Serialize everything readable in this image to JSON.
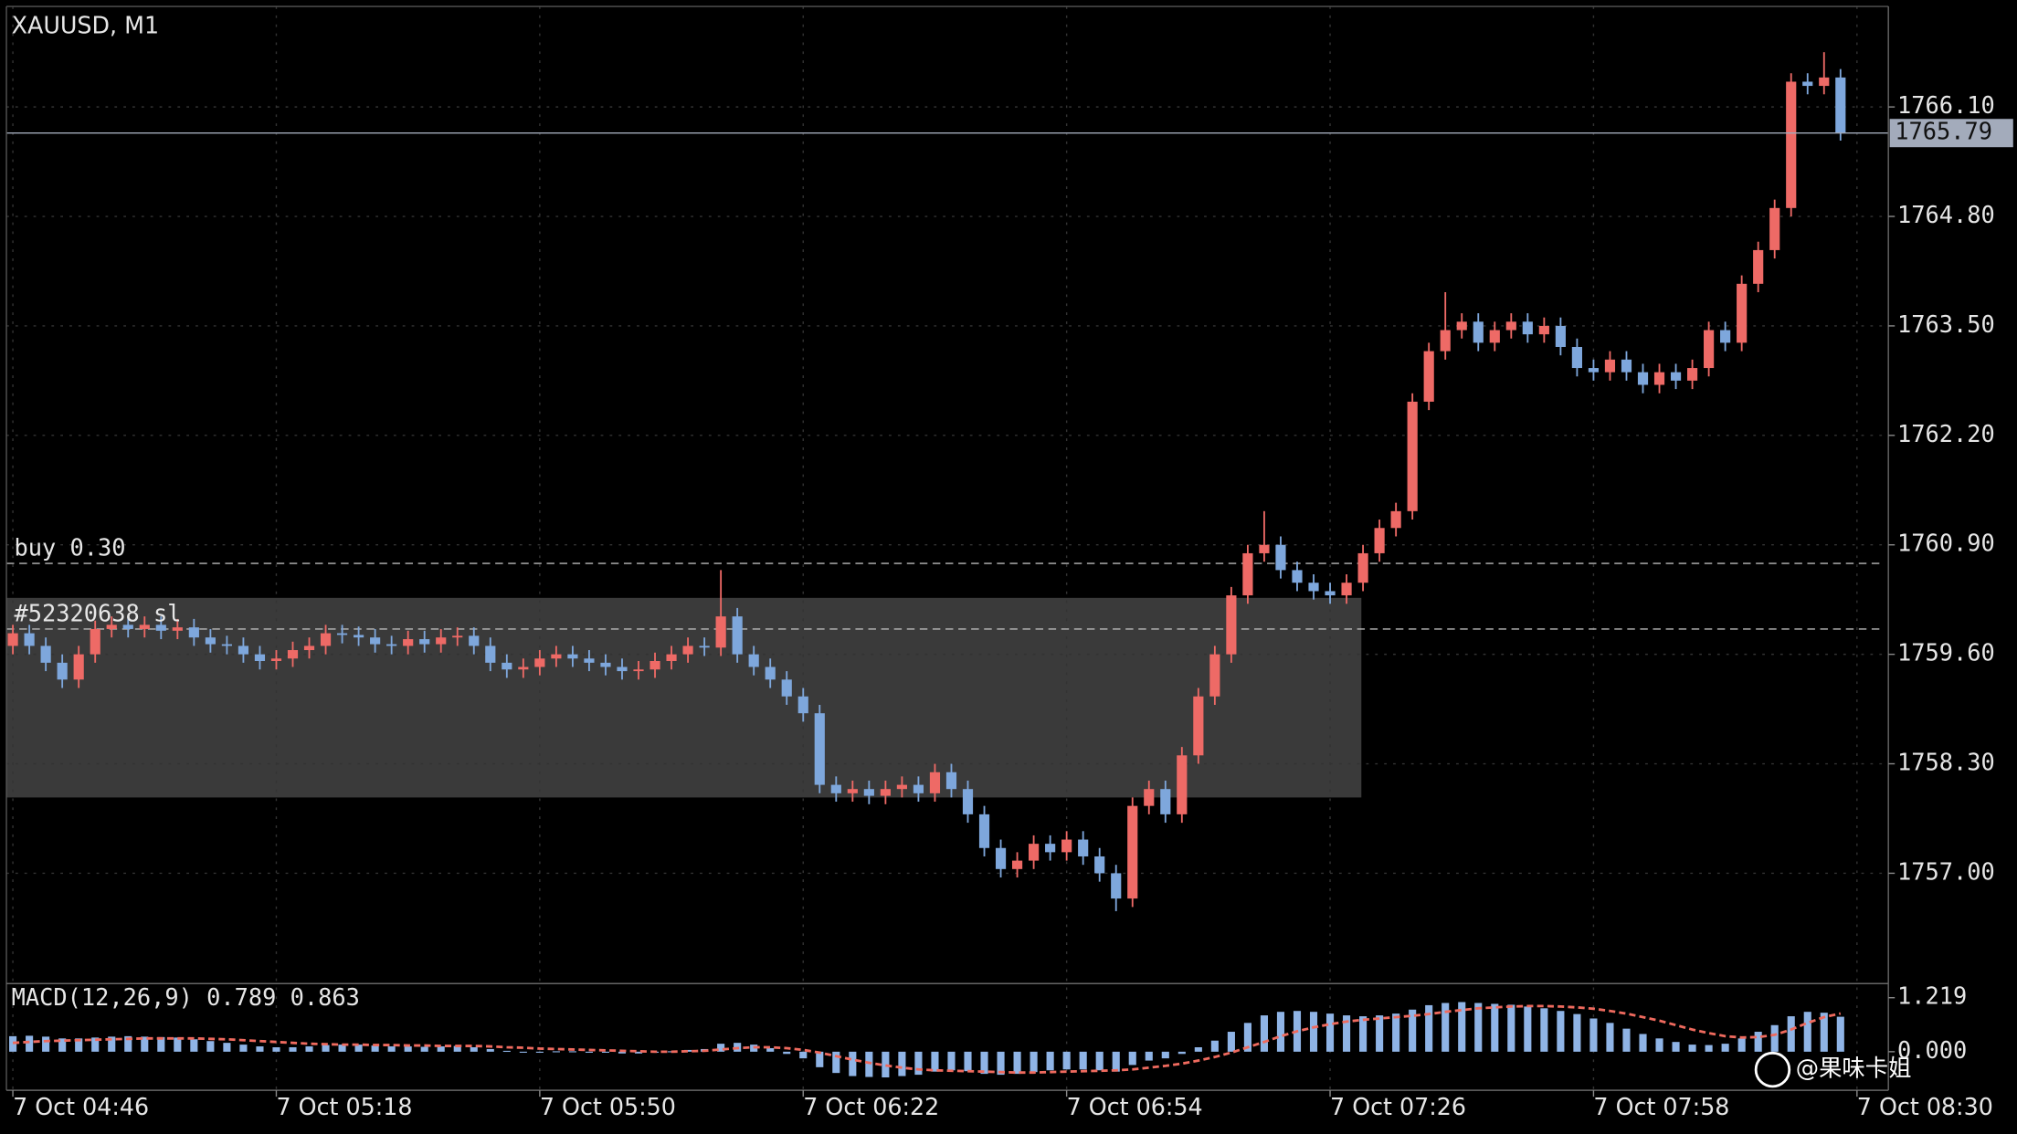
{
  "chart_data": {
    "type": "candlestick",
    "title": "XAUUSD, M1",
    "xlim": [
      0,
      112
    ],
    "xticks": [
      {
        "value": 0,
        "label": "7 Oct 04:46"
      },
      {
        "value": 16,
        "label": "7 Oct 05:18"
      },
      {
        "value": 32,
        "label": "7 Oct 05:50"
      },
      {
        "value": 48,
        "label": "7 Oct 06:22"
      },
      {
        "value": 64,
        "label": "7 Oct 06:54"
      },
      {
        "value": 80,
        "label": "7 Oct 07:26"
      },
      {
        "value": 96,
        "label": "7 Oct 07:58"
      },
      {
        "value": 112,
        "label": "7 Oct 08:30"
      }
    ],
    "ylim": [
      1755.69,
      1767.37
    ],
    "yticks": [
      {
        "value": 1757.0,
        "label": "1757.00"
      },
      {
        "value": 1758.3,
        "label": "1758.30"
      },
      {
        "value": 1759.6,
        "label": "1759.60"
      },
      {
        "value": 1760.9,
        "label": "1760.90"
      },
      {
        "value": 1762.2,
        "label": "1762.20"
      },
      {
        "value": 1763.5,
        "label": "1763.50"
      },
      {
        "value": 1764.8,
        "label": "1764.80"
      },
      {
        "value": 1766.1,
        "label": "1766.10"
      }
    ],
    "grid": true,
    "up_color": "#ee6a66",
    "down_color": "#7ea7dc",
    "open": [
      1759.7,
      1759.85,
      1759.7,
      1759.5,
      1759.3,
      1759.6,
      1759.9,
      1759.95,
      1759.9,
      1759.95,
      1759.88,
      1759.92,
      1759.8,
      1759.72,
      1759.7,
      1759.6,
      1759.52,
      1759.55,
      1759.65,
      1759.7,
      1759.85,
      1759.83,
      1759.8,
      1759.72,
      1759.7,
      1759.78,
      1759.72,
      1759.8,
      1759.82,
      1759.7,
      1759.5,
      1759.42,
      1759.45,
      1759.55,
      1759.6,
      1759.55,
      1759.5,
      1759.45,
      1759.4,
      1759.42,
      1759.52,
      1759.6,
      1759.7,
      1759.68,
      1760.05,
      1759.6,
      1759.45,
      1759.3,
      1759.1,
      1758.9,
      1758.05,
      1757.95,
      1758.0,
      1757.92,
      1758.0,
      1758.05,
      1757.95,
      1758.2,
      1758.0,
      1757.7,
      1757.3,
      1757.05,
      1757.15,
      1757.35,
      1757.25,
      1757.4,
      1757.2,
      1757.0,
      1756.7,
      1757.8,
      1758.0,
      1757.7,
      1758.4,
      1759.1,
      1759.6,
      1760.3,
      1760.8,
      1760.9,
      1760.6,
      1760.45,
      1760.35,
      1760.3,
      1760.45,
      1760.8,
      1761.1,
      1761.3,
      1762.6,
      1763.2,
      1763.45,
      1763.55,
      1763.3,
      1763.45,
      1763.55,
      1763.4,
      1763.5,
      1763.25,
      1763.0,
      1762.95,
      1763.1,
      1762.95,
      1762.8,
      1762.95,
      1762.85,
      1763.0,
      1763.45,
      1763.3,
      1764.0,
      1764.4,
      1764.9,
      1766.4,
      1766.35,
      1766.45
    ],
    "high": [
      1759.95,
      1759.95,
      1759.8,
      1759.6,
      1759.7,
      1760.0,
      1760.05,
      1760.05,
      1760.05,
      1760.05,
      1760.02,
      1760.02,
      1759.9,
      1759.82,
      1759.8,
      1759.7,
      1759.65,
      1759.75,
      1759.8,
      1759.95,
      1759.95,
      1759.93,
      1759.9,
      1759.82,
      1759.88,
      1759.88,
      1759.9,
      1759.92,
      1759.92,
      1759.8,
      1759.6,
      1759.55,
      1759.65,
      1759.7,
      1759.7,
      1759.65,
      1759.6,
      1759.55,
      1759.52,
      1759.62,
      1759.7,
      1759.8,
      1759.8,
      1760.6,
      1760.15,
      1759.7,
      1759.55,
      1759.4,
      1759.2,
      1759.0,
      1758.15,
      1758.1,
      1758.1,
      1758.1,
      1758.15,
      1758.15,
      1758.3,
      1758.3,
      1758.1,
      1757.8,
      1757.4,
      1757.25,
      1757.45,
      1757.45,
      1757.5,
      1757.5,
      1757.3,
      1757.1,
      1757.9,
      1758.1,
      1758.1,
      1758.5,
      1759.2,
      1759.7,
      1760.4,
      1760.9,
      1761.3,
      1761.0,
      1760.7,
      1760.55,
      1760.45,
      1760.55,
      1760.9,
      1761.2,
      1761.4,
      1762.7,
      1763.3,
      1763.9,
      1763.65,
      1763.65,
      1763.55,
      1763.65,
      1763.65,
      1763.6,
      1763.6,
      1763.35,
      1763.1,
      1763.2,
      1763.2,
      1763.05,
      1763.05,
      1763.05,
      1763.1,
      1763.55,
      1763.55,
      1764.1,
      1764.5,
      1765.0,
      1766.5,
      1766.5,
      1766.75,
      1766.55
    ],
    "low": [
      1759.6,
      1759.6,
      1759.4,
      1759.2,
      1759.2,
      1759.5,
      1759.8,
      1759.8,
      1759.8,
      1759.78,
      1759.78,
      1759.7,
      1759.62,
      1759.6,
      1759.5,
      1759.42,
      1759.42,
      1759.45,
      1759.55,
      1759.6,
      1759.73,
      1759.7,
      1759.62,
      1759.6,
      1759.6,
      1759.62,
      1759.62,
      1759.7,
      1759.6,
      1759.4,
      1759.32,
      1759.32,
      1759.35,
      1759.45,
      1759.45,
      1759.4,
      1759.35,
      1759.3,
      1759.3,
      1759.32,
      1759.42,
      1759.5,
      1759.58,
      1759.58,
      1759.5,
      1759.35,
      1759.2,
      1759.0,
      1758.8,
      1757.95,
      1757.85,
      1757.85,
      1757.82,
      1757.82,
      1757.9,
      1757.85,
      1757.85,
      1757.9,
      1757.6,
      1757.2,
      1756.95,
      1756.95,
      1757.05,
      1757.15,
      1757.15,
      1757.1,
      1756.9,
      1756.55,
      1756.6,
      1757.7,
      1757.6,
      1757.6,
      1758.3,
      1759.0,
      1759.5,
      1760.2,
      1760.7,
      1760.5,
      1760.35,
      1760.25,
      1760.2,
      1760.2,
      1760.35,
      1760.7,
      1761.0,
      1761.2,
      1762.5,
      1763.1,
      1763.35,
      1763.2,
      1763.2,
      1763.35,
      1763.3,
      1763.3,
      1763.15,
      1762.9,
      1762.85,
      1762.85,
      1762.85,
      1762.7,
      1762.7,
      1762.75,
      1762.75,
      1762.9,
      1763.2,
      1763.2,
      1763.9,
      1764.3,
      1764.8,
      1766.25,
      1766.25,
      1765.7
    ],
    "close": [
      1759.85,
      1759.7,
      1759.5,
      1759.3,
      1759.6,
      1759.9,
      1759.95,
      1759.9,
      1759.95,
      1759.88,
      1759.92,
      1759.8,
      1759.72,
      1759.7,
      1759.6,
      1759.52,
      1759.55,
      1759.65,
      1759.7,
      1759.85,
      1759.83,
      1759.8,
      1759.72,
      1759.7,
      1759.78,
      1759.72,
      1759.8,
      1759.82,
      1759.7,
      1759.5,
      1759.42,
      1759.45,
      1759.55,
      1759.6,
      1759.55,
      1759.5,
      1759.45,
      1759.4,
      1759.42,
      1759.52,
      1759.6,
      1759.7,
      1759.68,
      1760.05,
      1759.6,
      1759.45,
      1759.3,
      1759.1,
      1758.9,
      1758.05,
      1757.95,
      1758.0,
      1757.92,
      1758.0,
      1758.05,
      1757.95,
      1758.2,
      1758.0,
      1757.7,
      1757.3,
      1757.05,
      1757.15,
      1757.35,
      1757.25,
      1757.4,
      1757.2,
      1757.0,
      1756.7,
      1757.8,
      1758.0,
      1757.7,
      1758.4,
      1759.1,
      1759.6,
      1760.3,
      1760.8,
      1760.9,
      1760.6,
      1760.45,
      1760.35,
      1760.3,
      1760.45,
      1760.8,
      1761.1,
      1761.3,
      1762.6,
      1763.2,
      1763.45,
      1763.55,
      1763.3,
      1763.45,
      1763.55,
      1763.4,
      1763.5,
      1763.25,
      1763.0,
      1762.95,
      1763.1,
      1762.95,
      1762.8,
      1762.95,
      1762.85,
      1763.0,
      1763.45,
      1763.3,
      1764.0,
      1764.4,
      1764.9,
      1766.4,
      1766.35,
      1766.45,
      1765.79
    ],
    "current_price": {
      "value": 1765.79,
      "label": "1765.79",
      "color": "#a3abbb"
    },
    "levels": [
      {
        "name": "buy 0.30",
        "value": 1760.68
      },
      {
        "name": "#52320638 sl",
        "value": 1759.9
      }
    ],
    "zone": {
      "top": 1760.27,
      "bottom": 1757.9,
      "x_from": -0.4,
      "x_to": 81.9,
      "color": "#3a3a3a"
    },
    "macd": {
      "label": "MACD(12,26,9)",
      "macd_value": 0.789,
      "signal_value": 0.863,
      "ylim": [
        -0.871,
        1.538
      ],
      "yticks": [
        {
          "value": 1.219,
          "label": "1.219"
        },
        {
          "value": 0,
          "label": "0.000"
        }
      ],
      "histogram_color": "#8fb4e6",
      "signal_color": "#ef6a5e",
      "histogram": [
        0.35,
        0.36,
        0.34,
        0.3,
        0.3,
        0.32,
        0.34,
        0.35,
        0.34,
        0.33,
        0.32,
        0.28,
        0.24,
        0.2,
        0.16,
        0.12,
        0.1,
        0.1,
        0.12,
        0.15,
        0.16,
        0.16,
        0.14,
        0.12,
        0.12,
        0.11,
        0.12,
        0.13,
        0.1,
        0.06,
        0.02,
        0.0,
        0.0,
        0.01,
        0.01,
        0.0,
        -0.02,
        -0.04,
        -0.04,
        -0.02,
        0.01,
        0.04,
        0.06,
        0.18,
        0.2,
        0.16,
        0.08,
        -0.05,
        -0.15,
        -0.35,
        -0.48,
        -0.55,
        -0.57,
        -0.58,
        -0.55,
        -0.52,
        -0.45,
        -0.42,
        -0.44,
        -0.5,
        -0.52,
        -0.5,
        -0.46,
        -0.42,
        -0.4,
        -0.4,
        -0.42,
        -0.45,
        -0.3,
        -0.2,
        -0.15,
        -0.05,
        0.1,
        0.25,
        0.45,
        0.65,
        0.82,
        0.9,
        0.92,
        0.9,
        0.86,
        0.82,
        0.8,
        0.82,
        0.86,
        0.95,
        1.05,
        1.1,
        1.12,
        1.1,
        1.08,
        1.06,
        1.02,
        0.98,
        0.92,
        0.85,
        0.75,
        0.65,
        0.52,
        0.4,
        0.3,
        0.22,
        0.16,
        0.15,
        0.18,
        0.3,
        0.45,
        0.6,
        0.8,
        0.9,
        0.88,
        0.789
      ],
      "signal": [
        0.2,
        0.22,
        0.24,
        0.25,
        0.26,
        0.27,
        0.28,
        0.29,
        0.3,
        0.3,
        0.3,
        0.3,
        0.29,
        0.28,
        0.26,
        0.24,
        0.22,
        0.2,
        0.18,
        0.17,
        0.16,
        0.16,
        0.15,
        0.15,
        0.14,
        0.14,
        0.13,
        0.13,
        0.13,
        0.12,
        0.1,
        0.09,
        0.07,
        0.06,
        0.05,
        0.04,
        0.03,
        0.02,
        0.01,
        0.0,
        0.0,
        0.01,
        0.02,
        0.05,
        0.08,
        0.1,
        0.1,
        0.08,
        0.04,
        -0.02,
        -0.1,
        -0.18,
        -0.25,
        -0.31,
        -0.36,
        -0.4,
        -0.42,
        -0.43,
        -0.44,
        -0.45,
        -0.46,
        -0.47,
        -0.47,
        -0.46,
        -0.45,
        -0.44,
        -0.43,
        -0.42,
        -0.4,
        -0.36,
        -0.32,
        -0.27,
        -0.2,
        -0.12,
        -0.02,
        0.1,
        0.22,
        0.35,
        0.46,
        0.55,
        0.62,
        0.68,
        0.72,
        0.75,
        0.78,
        0.81,
        0.85,
        0.9,
        0.94,
        0.98,
        1.0,
        1.02,
        1.03,
        1.03,
        1.02,
        1.0,
        0.97,
        0.92,
        0.86,
        0.78,
        0.7,
        0.6,
        0.5,
        0.42,
        0.35,
        0.32,
        0.33,
        0.38,
        0.5,
        0.65,
        0.78,
        0.863
      ]
    },
    "watermark": "@果味卡姐"
  }
}
